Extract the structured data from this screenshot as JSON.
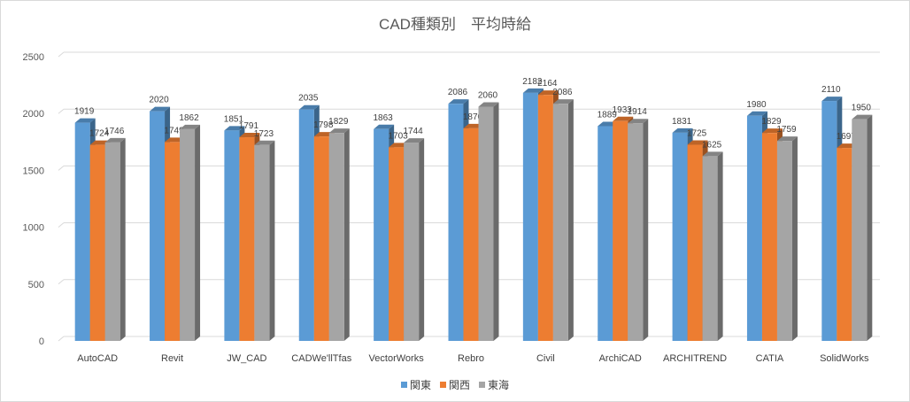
{
  "chart_data": {
    "type": "bar",
    "title": "CAD種類別　平均時給",
    "xlabel": "",
    "ylabel": "",
    "ylim": [
      0,
      2500
    ],
    "yticks": [
      0,
      500,
      1000,
      1500,
      2000,
      2500
    ],
    "grid": true,
    "legend_position": "bottom",
    "style": "3d-clustered-column",
    "categories": [
      "AutoCAD",
      "Revit",
      "JW_CAD",
      "CADWe'llTfas",
      "VectorWorks",
      "Rebro",
      "Civil",
      "ArchiCAD",
      "ARCHITREND",
      "CATIA",
      "SolidWorks"
    ],
    "series": [
      {
        "name": "関東",
        "color": "#5b9bd5",
        "values": [
          1919,
          2020,
          1851,
          2035,
          1863,
          2086,
          2182,
          1889,
          1831,
          1980,
          2110
        ]
      },
      {
        "name": "関西",
        "color": "#ed7d31",
        "values": [
          1724,
          1749,
          1791,
          1798,
          1703,
          1870,
          2164,
          1933,
          1725,
          1829,
          1697
        ]
      },
      {
        "name": "東海",
        "color": "#a5a5a5",
        "values": [
          1746,
          1862,
          1723,
          1829,
          1744,
          2060,
          2086,
          1914,
          1625,
          1759,
          1950
        ]
      }
    ]
  }
}
